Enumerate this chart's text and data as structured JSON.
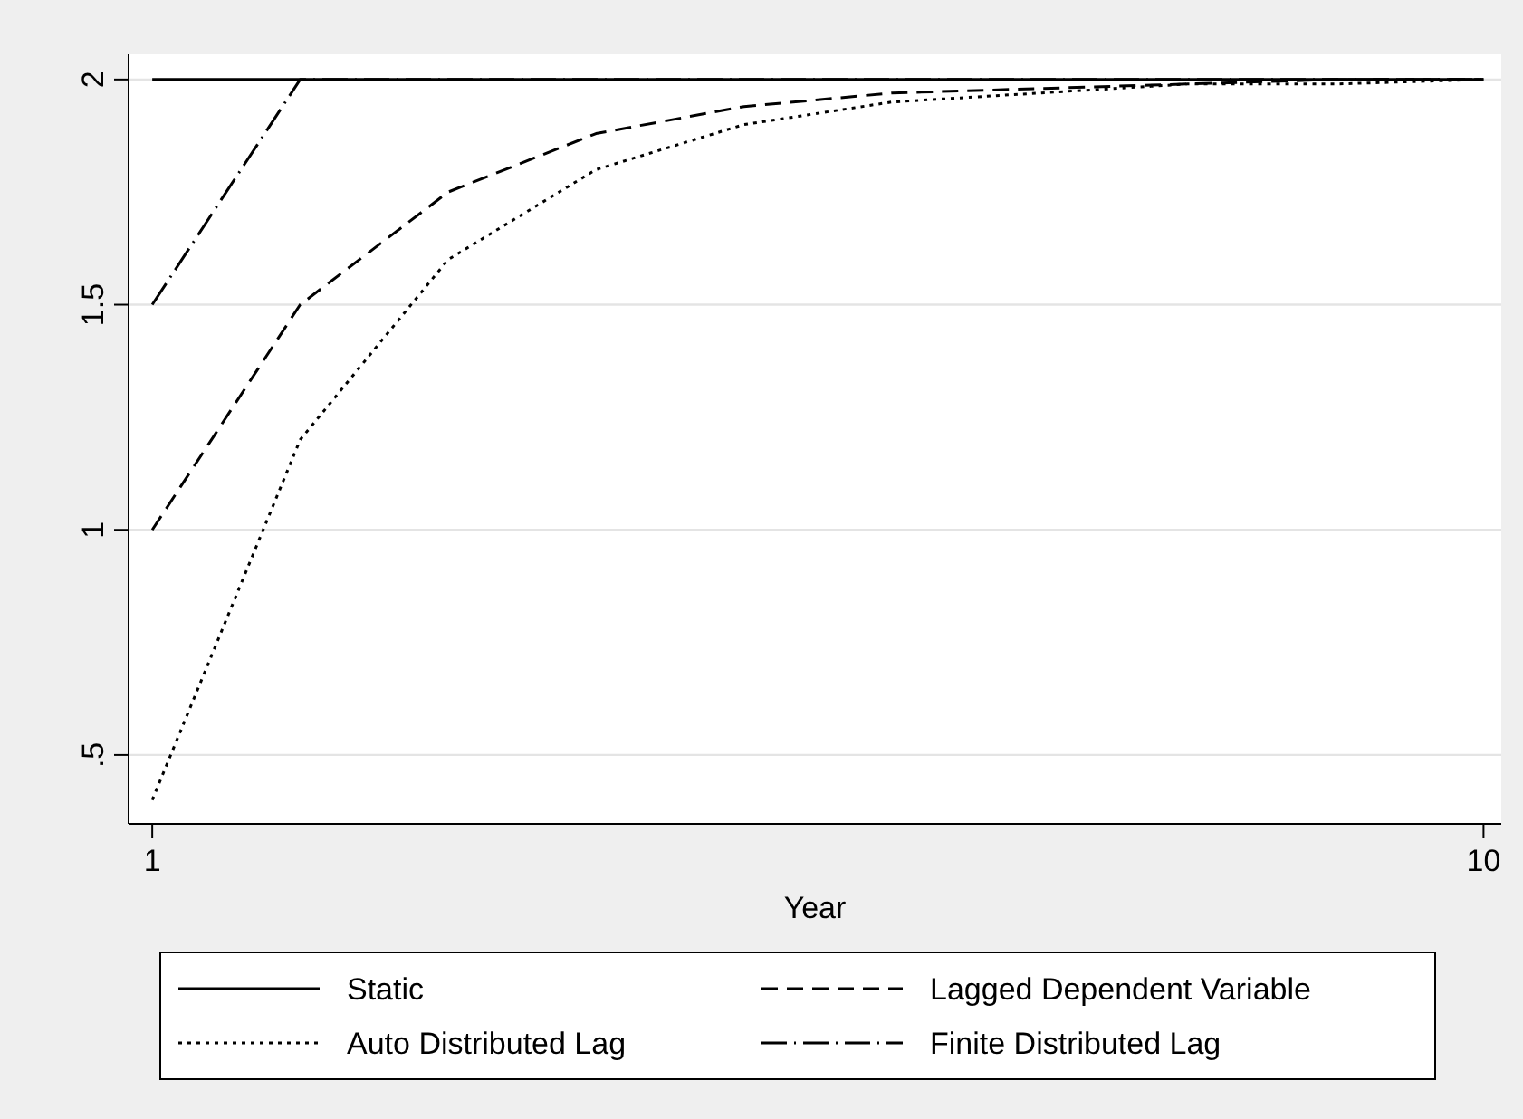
{
  "chart_data": {
    "type": "line",
    "xlabel": "Year",
    "x": [
      1,
      2,
      3,
      4,
      5,
      6,
      7,
      8,
      9,
      10
    ],
    "xlim": [
      0.84,
      10.12
    ],
    "xticks": [
      1,
      10
    ],
    "ylim": [
      0.347,
      2.056
    ],
    "yticks": [
      {
        "value": 0.5,
        "label": ".5"
      },
      1,
      1.5,
      2
    ],
    "grid": "y",
    "legend": "bottom",
    "series": [
      {
        "name": "Static",
        "color": "#000000",
        "line_style": "solid",
        "values": [
          2,
          2,
          2,
          2,
          2,
          2,
          2,
          2,
          2,
          2
        ]
      },
      {
        "name": "Lagged Dependent Variable",
        "color": "#000000",
        "line_style": "dashed",
        "values": [
          1,
          1.5,
          1.75,
          1.88,
          1.94,
          1.97,
          1.98,
          1.99,
          2,
          2
        ]
      },
      {
        "name": "Auto Distributed Lag",
        "color": "#000000",
        "line_style": "dotted",
        "values": [
          0.4,
          1.2,
          1.6,
          1.8,
          1.9,
          1.95,
          1.97,
          1.99,
          1.99,
          2
        ]
      },
      {
        "name": "Finite Distributed Lag",
        "color": "#000000",
        "line_style": "dashdot",
        "values": [
          1.5,
          2,
          2,
          2,
          2,
          2,
          2,
          2,
          2,
          2
        ]
      }
    ]
  }
}
